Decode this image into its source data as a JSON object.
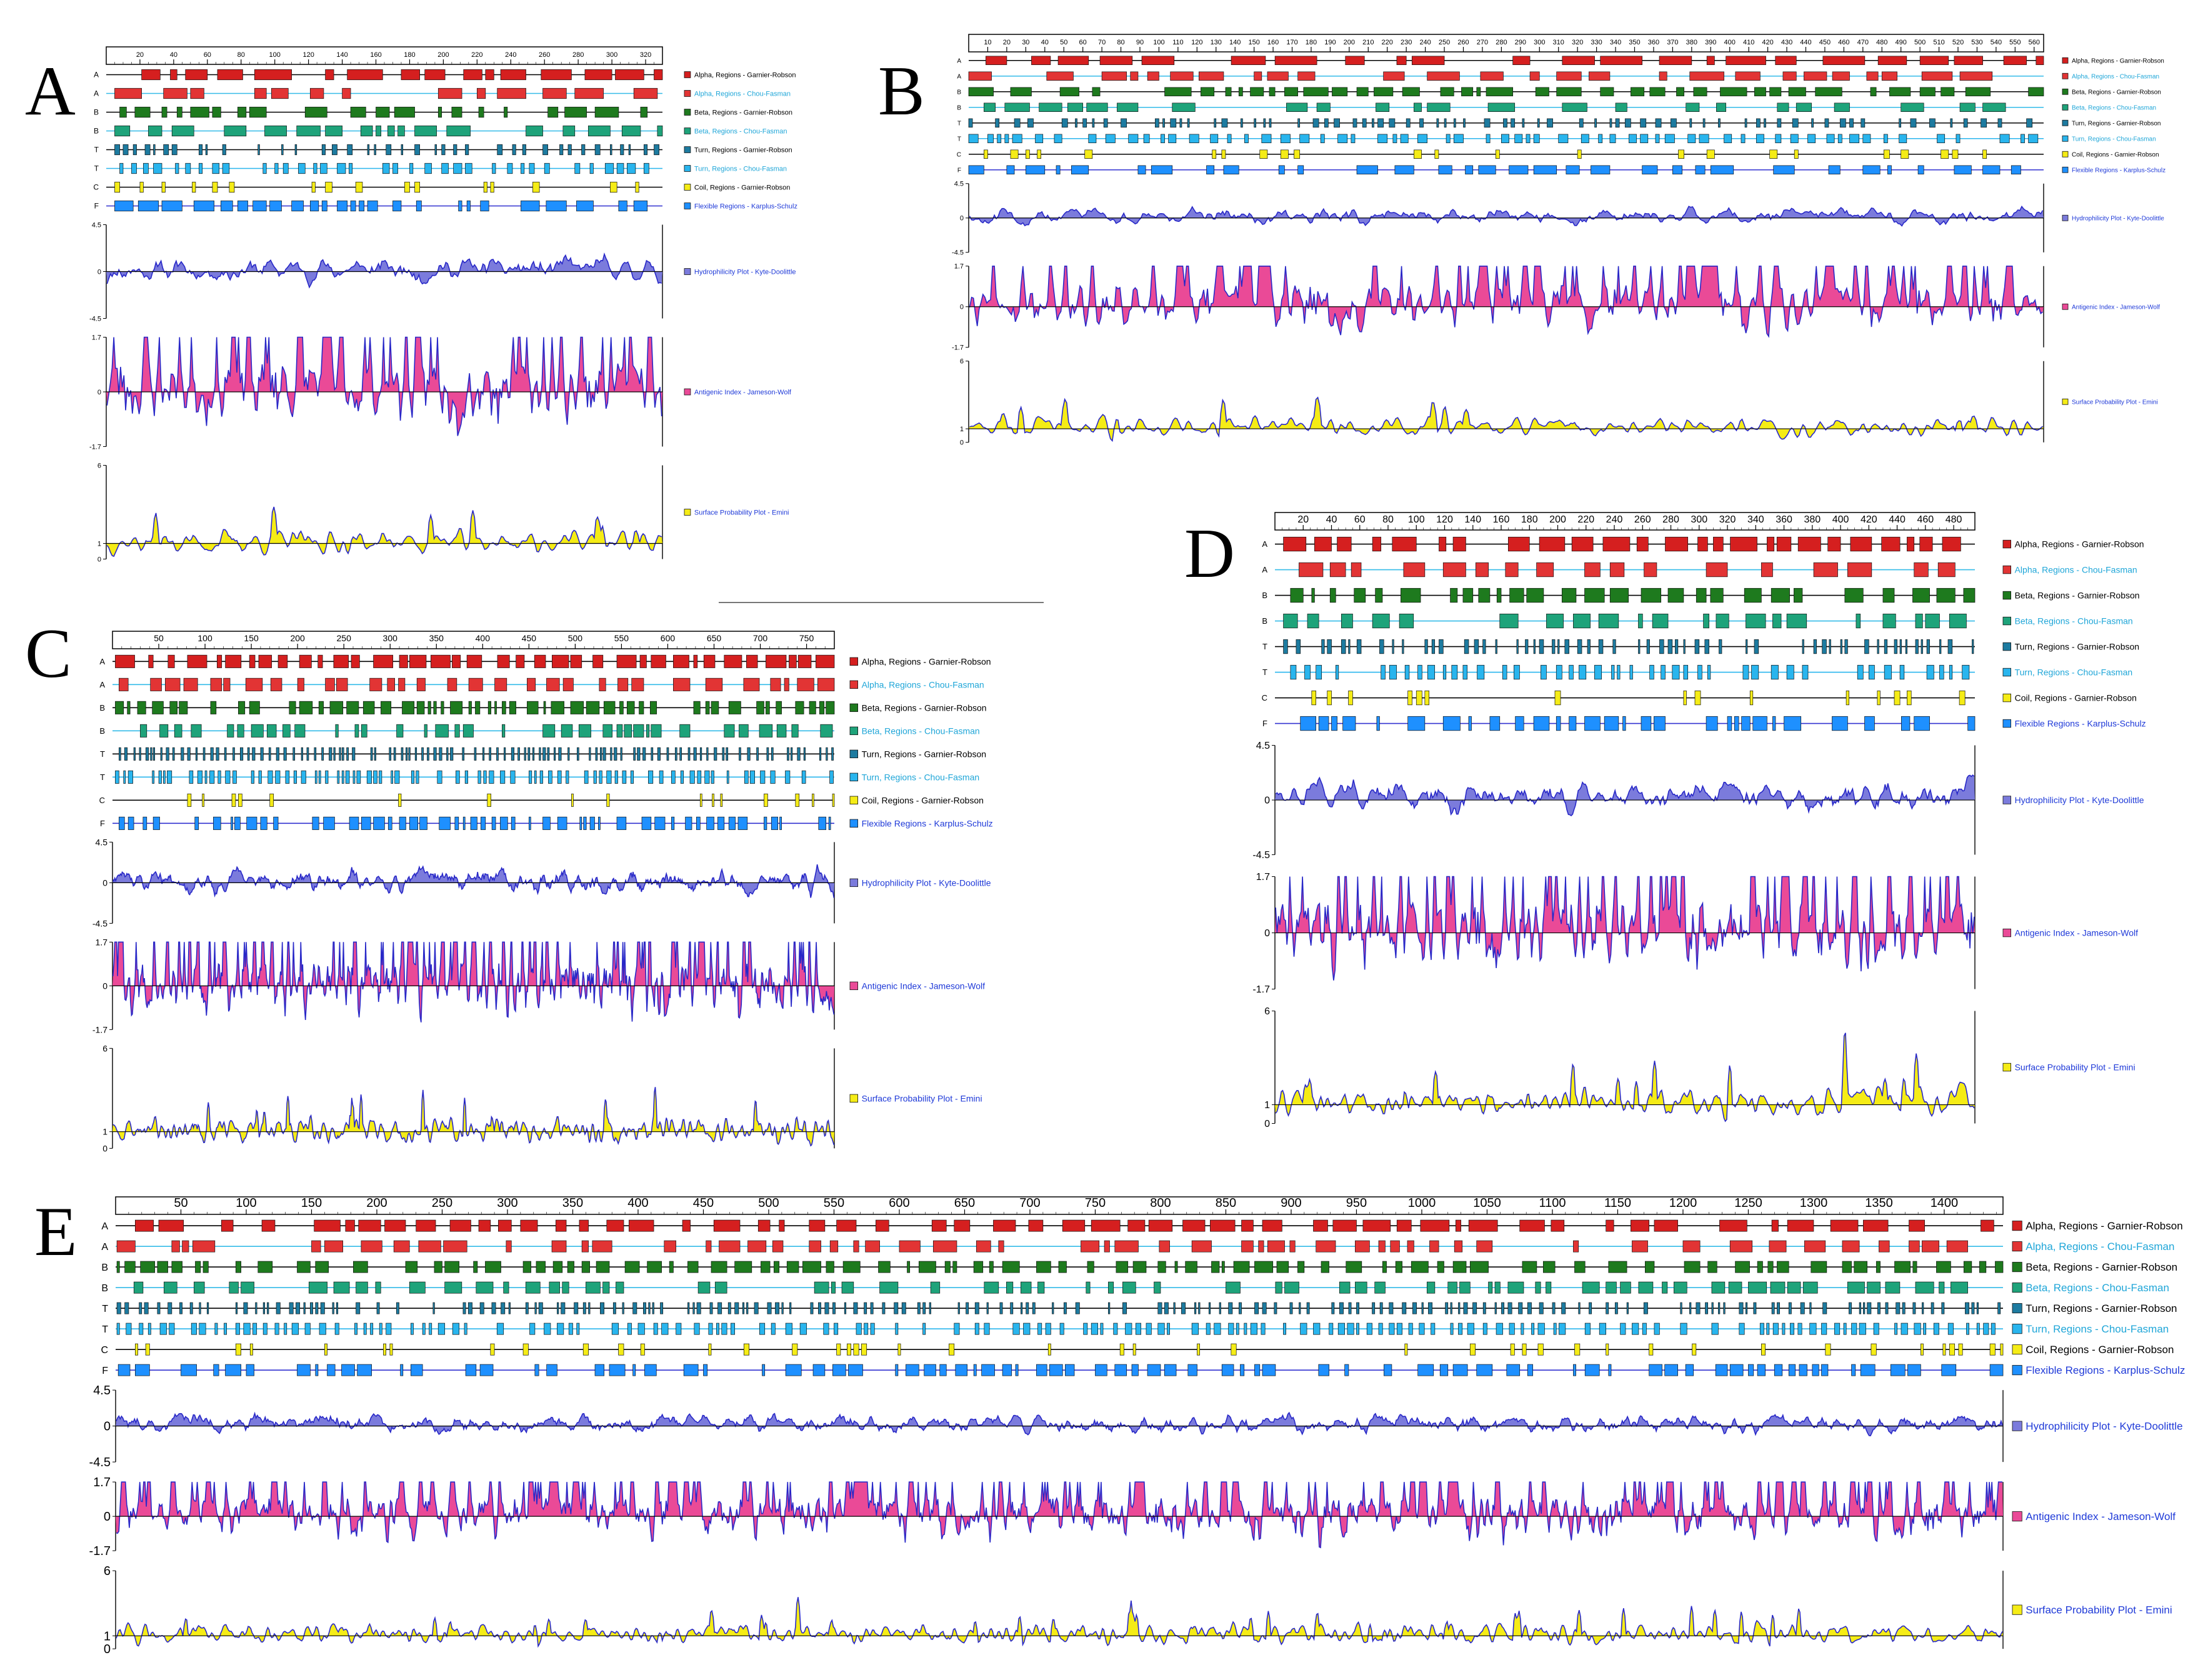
{
  "figure": {
    "letters": [
      "A",
      "B",
      "C",
      "D",
      "E"
    ]
  },
  "panel_labels": {
    "A": "A",
    "B": "B",
    "C": "C",
    "D": "D",
    "E": "E"
  },
  "colors": {
    "alpha_gr": "#d51f1f",
    "alpha_cf": "#e23434",
    "alpha_cf_line": "#33bbe8",
    "beta": "#1e7a1e",
    "beta_cf_line": "#33bbe8",
    "beta_cf": "#1ea37a",
    "turn_gr": "#1d7ba0",
    "turn_cf": "#29b5ee",
    "coil": "#f5ec16",
    "flex": "#1e90ff",
    "flex_line": "#3030d0",
    "hydro_fill": "#7b7bdc",
    "antigenic_fill": "#ea4a97",
    "surface_fill": "#f5ec16",
    "curve_line": "#2828c8"
  },
  "legend_labels": [
    "Alpha, Regions - Garnier-Robson",
    "Alpha, Regions - Chou-Fasman",
    "Beta, Regions - Garnier-Robson",
    "Beta, Regions - Chou-Fasman",
    "Turn, Regions - Garnier-Robson",
    "Turn, Regions - Chou-Fasman",
    "Coil, Regions - Garnier-Robson",
    "Flexible Regions - Karplus-Schulz",
    "Hydrophilicity Plot - Kyte-Doolittle",
    "Antigenic Index - Jameson-Wolf",
    "Surface Probability Plot - Emini"
  ],
  "track_letters": [
    "A",
    "A",
    "B",
    "B",
    "T",
    "T",
    "C",
    "F"
  ],
  "chart_data": [
    {
      "panel": "A",
      "type": "area",
      "length": 330,
      "ticks": [
        "20",
        "40",
        "60",
        "80",
        "100",
        "120",
        "140",
        "160",
        "180",
        "200",
        "220",
        "240",
        "260",
        "280",
        "300",
        "320"
      ],
      "hydro_ylim": [
        -4.5,
        4.5
      ],
      "hydro_ticks": [
        "4.5",
        "0",
        "-4.5"
      ],
      "antigenic_ylim": [
        -1.7,
        1.7
      ],
      "antigenic_ticks": [
        "1.7",
        "0",
        "-1.7"
      ],
      "surface_ylim": [
        0,
        6
      ],
      "surface_ticks": [
        "6",
        "1",
        "0"
      ]
    },
    {
      "panel": "B",
      "type": "area",
      "length": 565,
      "ticks": [
        "10",
        "20",
        "30",
        "40",
        "50",
        "60",
        "70",
        "80",
        "90",
        "100",
        "110",
        "120",
        "130",
        "140",
        "150",
        "160",
        "170",
        "180",
        "190",
        "200",
        "210",
        "220",
        "230",
        "240",
        "250",
        "260",
        "270",
        "280",
        "290",
        "300",
        "310",
        "320",
        "330",
        "340",
        "350",
        "360",
        "370",
        "380",
        "390",
        "400",
        "410",
        "420",
        "430",
        "440",
        "450",
        "460",
        "470",
        "480",
        "490",
        "500",
        "510",
        "520",
        "530",
        "540",
        "550",
        "560"
      ],
      "hydro_ylim": [
        -4.5,
        4.5
      ],
      "hydro_ticks": [
        "4.5",
        "0",
        "-4.5"
      ],
      "antigenic_ylim": [
        -1.7,
        1.7
      ],
      "antigenic_ticks": [
        "1.7",
        "0",
        "-1.7"
      ],
      "surface_ylim": [
        0,
        6
      ],
      "surface_ticks": [
        "6",
        "1",
        "0"
      ]
    },
    {
      "panel": "C",
      "type": "area",
      "length": 780,
      "ticks": [
        "50",
        "100",
        "150",
        "200",
        "250",
        "300",
        "350",
        "400",
        "450",
        "500",
        "550",
        "600",
        "650",
        "700",
        "750"
      ],
      "hydro_ylim": [
        -4.5,
        4.5
      ],
      "hydro_ticks": [
        "4.5",
        "0",
        "-4.5"
      ],
      "antigenic_ylim": [
        -1.7,
        1.7
      ],
      "antigenic_ticks": [
        "1.7",
        "0",
        "-1.7"
      ],
      "surface_ylim": [
        0,
        6
      ],
      "surface_ticks": [
        "6",
        "1",
        "0"
      ]
    },
    {
      "panel": "D",
      "type": "area",
      "length": 495,
      "ticks": [
        "20",
        "40",
        "60",
        "80",
        "100",
        "120",
        "140",
        "160",
        "180",
        "200",
        "220",
        "240",
        "260",
        "280",
        "300",
        "320",
        "340",
        "360",
        "380",
        "400",
        "420",
        "440",
        "460",
        "480"
      ],
      "hydro_ylim": [
        -4.5,
        4.5
      ],
      "hydro_ticks": [
        "4.5",
        "0",
        "-4.5"
      ],
      "antigenic_ylim": [
        -1.7,
        1.7
      ],
      "antigenic_ticks": [
        "1.7",
        "0",
        "-1.7"
      ],
      "surface_ylim": [
        0,
        6
      ],
      "surface_ticks": [
        "6",
        "1",
        "0"
      ]
    },
    {
      "panel": "E",
      "type": "area",
      "length": 1445,
      "ticks": [
        "50",
        "100",
        "150",
        "200",
        "250",
        "300",
        "350",
        "400",
        "450",
        "500",
        "550",
        "600",
        "650",
        "700",
        "750",
        "800",
        "850",
        "900",
        "950",
        "1000",
        "1050",
        "1100",
        "1150",
        "1200",
        "1250",
        "1300",
        "1350",
        "1400"
      ],
      "hydro_ylim": [
        -4.5,
        4.5
      ],
      "hydro_ticks": [
        "4.5",
        "0",
        "-4.5"
      ],
      "antigenic_ylim": [
        -1.7,
        1.7
      ],
      "antigenic_ticks": [
        "1.7",
        "0",
        "-1.7"
      ],
      "surface_ylim": [
        0,
        6
      ],
      "surface_ticks": [
        "6",
        "1",
        "0"
      ]
    }
  ]
}
